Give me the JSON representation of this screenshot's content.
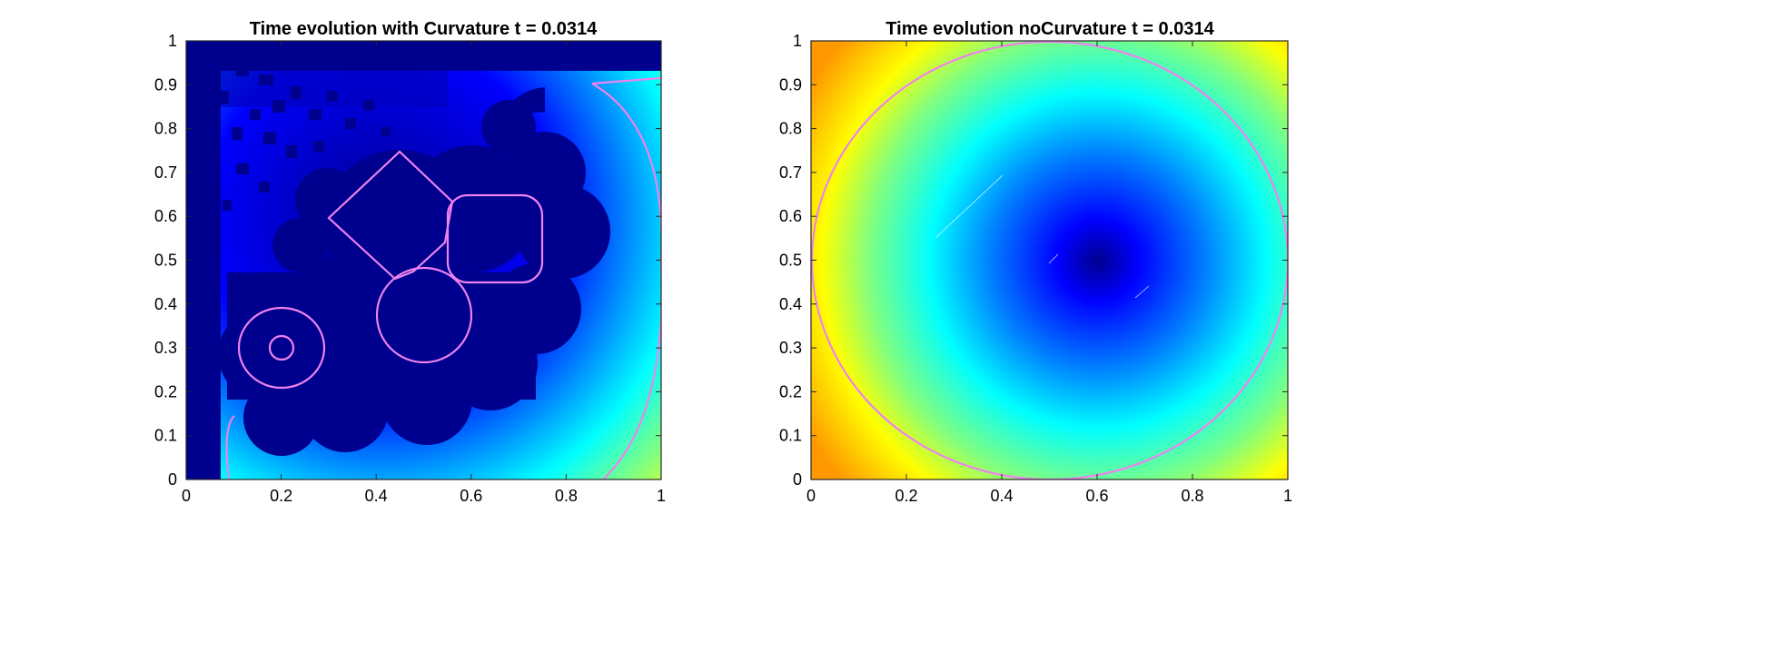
{
  "chart_data": [
    {
      "type": "heatmap",
      "id": "curvature",
      "title": "Time evolution with Curvature t = 0.0314",
      "xlabel": "",
      "ylabel": "",
      "xlim": [
        0,
        1
      ],
      "ylim": [
        0,
        1
      ],
      "xticks": [
        "0",
        "0.2",
        "0.4",
        "0.6",
        "0.8",
        "1"
      ],
      "yticks": [
        "0",
        "0.1",
        "0.2",
        "0.3",
        "0.4",
        "0.5",
        "0.6",
        "0.7",
        "0.8",
        "0.9",
        "1"
      ],
      "colormap": "jet",
      "contour_color": "#ee82ee",
      "grid": false,
      "zero_level_set": {
        "square": [
          [
            0.3,
            0.6
          ],
          [
            0.45,
            0.75
          ],
          [
            0.6,
            0.6
          ],
          [
            0.45,
            0.45
          ]
        ],
        "rounded_rect": {
          "x0": 0.55,
          "x1": 0.75,
          "y0": 0.45,
          "y1": 0.65
        },
        "circle_large": {
          "cx": 0.47,
          "cy": 0.38,
          "r": 0.1
        },
        "ring_outer": {
          "cx": 0.2,
          "cy": 0.3,
          "r": 0.09
        },
        "ring_inner": {
          "cx": 0.2,
          "cy": 0.3,
          "r": 0.025
        }
      }
    },
    {
      "type": "heatmap",
      "id": "nocurvature",
      "title": "Time evolution noCurvature t = 0.0314",
      "xlabel": "",
      "ylabel": "",
      "xlim": [
        0,
        1
      ],
      "ylim": [
        0,
        1
      ],
      "xticks": [
        "0",
        "0.2",
        "0.4",
        "0.6",
        "0.8",
        "1"
      ],
      "yticks": [
        "0",
        "0.1",
        "0.2",
        "0.3",
        "0.4",
        "0.5",
        "0.6",
        "0.7",
        "0.8",
        "0.9",
        "1"
      ],
      "colormap": "jet",
      "contour_color": "#ee82ee",
      "grid": false,
      "zero_level_set": {
        "circle": {
          "cx": 0.5,
          "cy": 0.5,
          "r": 0.5
        }
      }
    }
  ]
}
